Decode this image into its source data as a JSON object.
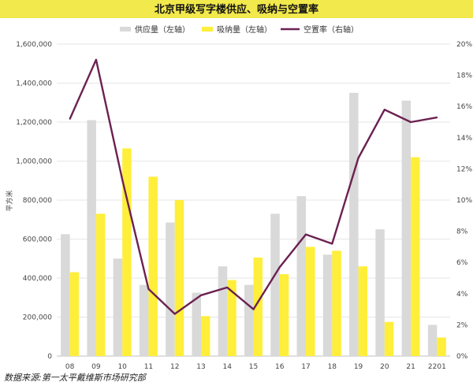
{
  "chart_data": {
    "type": "bar+line",
    "title": "北京甲级写字楼供应、吸纳与空置率",
    "ylabel": "平方米",
    "source": "数据来源:第一太平戴维斯市场研究部",
    "categories": [
      "08",
      "09",
      "10",
      "11",
      "12",
      "13",
      "14",
      "15",
      "16",
      "17",
      "18",
      "19",
      "20",
      "21",
      "2201"
    ],
    "ylim": [
      0,
      1600000
    ],
    "y2lim": [
      0,
      0.2
    ],
    "y_ticks": [
      "0",
      "200,000",
      "400,000",
      "600,000",
      "800,000",
      "1,000,000",
      "1,200,000",
      "1,400,000",
      "1,600,000"
    ],
    "y2_ticks": [
      "0%",
      "2%",
      "4%",
      "6%",
      "8%",
      "10%",
      "12%",
      "14%",
      "16%",
      "18%",
      "20%"
    ],
    "legend_position": "top",
    "series": [
      {
        "name": "供应量（左轴）",
        "kind": "bar",
        "axis": "left",
        "color": "#d9d9d9",
        "values": [
          625000,
          1210000,
          500000,
          365000,
          685000,
          325000,
          460000,
          365000,
          730000,
          820000,
          520000,
          1350000,
          650000,
          1310000,
          160000
        ]
      },
      {
        "name": "吸纳量（左轴）",
        "kind": "bar",
        "axis": "left",
        "color": "#ffee3a",
        "values": [
          430000,
          730000,
          1065000,
          920000,
          800000,
          205000,
          390000,
          505000,
          420000,
          560000,
          540000,
          460000,
          175000,
          1020000,
          95000
        ]
      },
      {
        "name": "空置率（右轴）",
        "kind": "line",
        "axis": "right",
        "color": "#6b2151",
        "values": [
          0.152,
          0.19,
          0.113,
          0.043,
          0.027,
          0.039,
          0.044,
          0.03,
          0.057,
          0.078,
          0.072,
          0.127,
          0.158,
          0.15,
          0.153
        ]
      }
    ]
  },
  "colors": {
    "title_band": "#f2e94c",
    "gridline": "#e6e6e6",
    "axis_text": "#444444"
  }
}
